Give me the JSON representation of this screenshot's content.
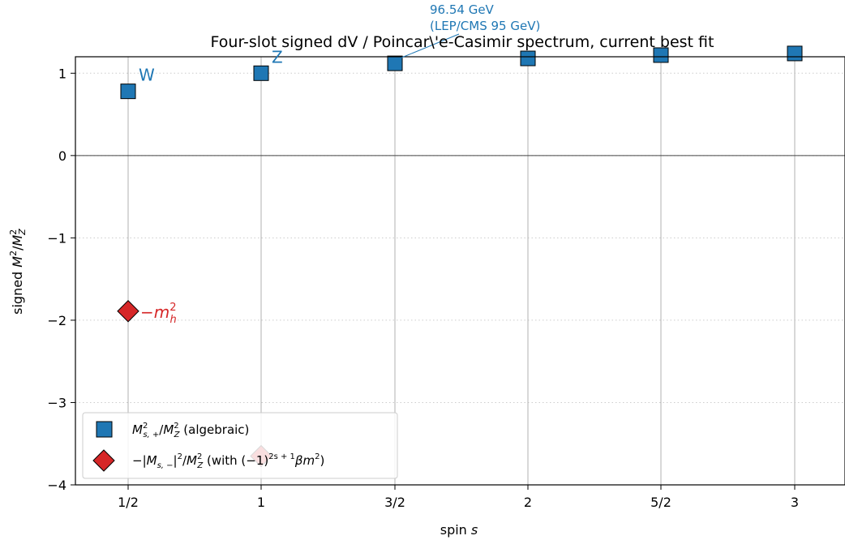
{
  "chart_data": {
    "type": "scatter",
    "title": "Four-slot signed dV / Poincar\\'e-Casimir spectrum, current best fit",
    "xlabel": "spin s",
    "ylabel": "signed M²/M²",
    "xlabel_parts": {
      "main": "spin ",
      "var": "s"
    },
    "ylabel_parts": {
      "pre": "signed ",
      "num": "M",
      "num_sup": "2",
      "slash": "/",
      "den": "M",
      "den_sup": "2",
      "den_sub": "Z"
    },
    "categories": [
      "1/2",
      "1",
      "3/2",
      "2",
      "5/2",
      "3"
    ],
    "ylim": [
      -4,
      1.2
    ],
    "yticks": [
      1,
      0,
      -1,
      -2,
      -3,
      -4
    ],
    "ytick_labels": [
      "1",
      "0",
      "−1",
      "−2",
      "−3",
      "−4"
    ],
    "grid": "horizontal dotted",
    "legend": "lower-left",
    "colors": {
      "plus": "#1f77b4",
      "minus": "#d62728",
      "stem": "#b0b0b0",
      "zero": "#444444"
    },
    "series": [
      {
        "name": "M²s,+/M²Z (algebraic)",
        "legend_parts": {
          "pre": "",
          "var": "M",
          "sup": "2",
          "sub": "s, +",
          "slash": "/",
          "var2": "M",
          "sup2": "2",
          "sub2": "Z",
          "post": " (algebraic)"
        },
        "marker": "square",
        "color": "#1f77b4",
        "x": [
          "1/2",
          "1",
          "3/2",
          "2",
          "5/2",
          "3"
        ],
        "values": [
          0.78,
          1.0,
          1.12,
          1.18,
          1.22,
          1.24
        ]
      },
      {
        "name": "−|Ms,−|²/M²Z (with (−1)^(2s+1) βm²)",
        "legend_parts": {
          "pre": "−|",
          "var": "M",
          "sub": "s, −",
          "mid": "|",
          "sup": "2",
          "slash": "/",
          "var2": "M",
          "sup2": "2",
          "sub2": "Z",
          "post1": " (with (−1)",
          "post_sup": "2s + 1",
          "post2": "βm",
          "post2_sup": "2",
          "post3": ")"
        },
        "marker": "diamond",
        "color": "#d62728",
        "x": [
          "1/2",
          "1"
        ],
        "values": [
          -1.89,
          -3.65
        ]
      }
    ],
    "annotations": {
      "W": {
        "text": "W",
        "x": "1/2",
        "y": 0.78
      },
      "Z": {
        "text": "Z",
        "x": "1",
        "y": 1.0
      },
      "mh": {
        "text": "−m",
        "sup": "2",
        "sub": "h",
        "x": "1/2",
        "y": -1.89
      },
      "callout": {
        "line1": "96.54 GeV",
        "line2": "(LEP/CMS 95 GeV)",
        "x": "3/2",
        "y": 1.12
      }
    }
  }
}
